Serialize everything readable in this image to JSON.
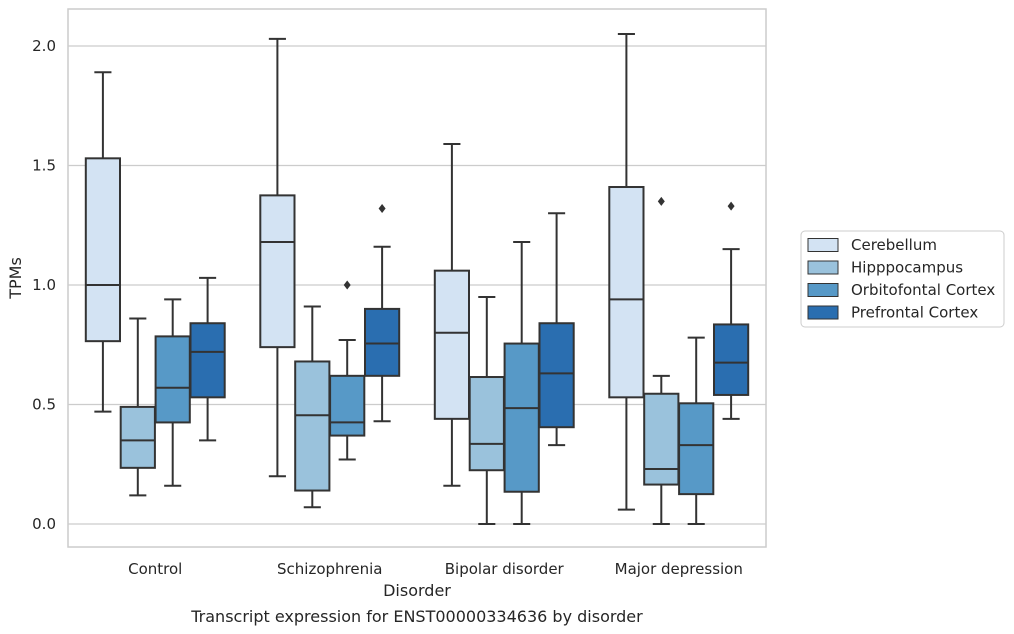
{
  "chart_data": {
    "type": "box",
    "xlabel": "Disorder",
    "ylabel": "TPMs",
    "caption": "Transcript expression for ENST00000334636 by disorder",
    "ylim": [
      -0.1,
      2.155
    ],
    "yticks": [
      "0.0",
      "0.5",
      "1.0",
      "1.5",
      "2.0"
    ],
    "ytick_values": [
      0.0,
      0.5,
      1.0,
      1.5,
      2.0
    ],
    "grid": "horizontal",
    "legend_position": "right",
    "categories": [
      "Control",
      "Schizophrenia",
      "Bipolar disorder",
      "Major depression"
    ],
    "series": [
      {
        "name": "Cerebellum",
        "color": "#d3e3f3",
        "boxes": [
          {
            "whisker_low": 0.47,
            "q1": 0.765,
            "median": 1.0,
            "q3": 1.53,
            "whisker_high": 1.89,
            "outliers": []
          },
          {
            "whisker_low": 0.2,
            "q1": 0.74,
            "median": 1.18,
            "q3": 1.375,
            "whisker_high": 2.03,
            "outliers": []
          },
          {
            "whisker_low": 0.16,
            "q1": 0.44,
            "median": 0.8,
            "q3": 1.06,
            "whisker_high": 1.59,
            "outliers": []
          },
          {
            "whisker_low": 0.06,
            "q1": 0.53,
            "median": 0.94,
            "q3": 1.41,
            "whisker_high": 2.05,
            "outliers": []
          }
        ]
      },
      {
        "name": "Hipppocampus",
        "color": "#9ac2dc",
        "boxes": [
          {
            "whisker_low": 0.12,
            "q1": 0.235,
            "median": 0.35,
            "q3": 0.49,
            "whisker_high": 0.86,
            "outliers": []
          },
          {
            "whisker_low": 0.07,
            "q1": 0.14,
            "median": 0.455,
            "q3": 0.68,
            "whisker_high": 0.91,
            "outliers": []
          },
          {
            "whisker_low": 0.0,
            "q1": 0.225,
            "median": 0.335,
            "q3": 0.615,
            "whisker_high": 0.95,
            "outliers": []
          },
          {
            "whisker_low": 0.0,
            "q1": 0.165,
            "median": 0.23,
            "q3": 0.545,
            "whisker_high": 0.62,
            "outliers": [
              1.35
            ]
          }
        ]
      },
      {
        "name": "Orbitofontal Cortex",
        "color": "#5799c7",
        "boxes": [
          {
            "whisker_low": 0.16,
            "q1": 0.425,
            "median": 0.57,
            "q3": 0.785,
            "whisker_high": 0.94,
            "outliers": []
          },
          {
            "whisker_low": 0.27,
            "q1": 0.37,
            "median": 0.425,
            "q3": 0.62,
            "whisker_high": 0.77,
            "outliers": [
              1.0
            ]
          },
          {
            "whisker_low": 0.0,
            "q1": 0.135,
            "median": 0.485,
            "q3": 0.755,
            "whisker_high": 1.18,
            "outliers": []
          },
          {
            "whisker_low": 0.0,
            "q1": 0.125,
            "median": 0.33,
            "q3": 0.505,
            "whisker_high": 0.78,
            "outliers": []
          }
        ]
      },
      {
        "name": "Prefrontal Cortex",
        "color": "#2a6eb0",
        "boxes": [
          {
            "whisker_low": 0.35,
            "q1": 0.53,
            "median": 0.72,
            "q3": 0.84,
            "whisker_high": 1.03,
            "outliers": []
          },
          {
            "whisker_low": 0.43,
            "q1": 0.62,
            "median": 0.755,
            "q3": 0.9,
            "whisker_high": 1.16,
            "outliers": [
              1.32
            ]
          },
          {
            "whisker_low": 0.33,
            "q1": 0.405,
            "median": 0.63,
            "q3": 0.84,
            "whisker_high": 1.3,
            "outliers": []
          },
          {
            "whisker_low": 0.44,
            "q1": 0.54,
            "median": 0.675,
            "q3": 0.835,
            "whisker_high": 1.15,
            "outliers": [
              1.33
            ]
          }
        ]
      }
    ]
  },
  "style": {
    "edge_color": "#333333",
    "grid_color": "#cccccc",
    "frame_color": "#cccccc"
  }
}
